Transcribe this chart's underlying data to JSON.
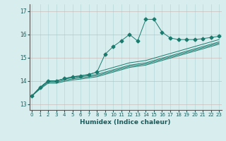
{
  "title": "",
  "xlabel": "Humidex (Indice chaleur)",
  "ylabel": "",
  "x_data": [
    0,
    1,
    2,
    3,
    4,
    5,
    6,
    7,
    8,
    9,
    10,
    11,
    12,
    13,
    14,
    15,
    16,
    17,
    18,
    19,
    20,
    21,
    22,
    23
  ],
  "line1": [
    13.35,
    13.72,
    14.0,
    14.0,
    14.1,
    14.18,
    14.22,
    14.28,
    14.38,
    15.15,
    15.48,
    15.73,
    16.0,
    15.72,
    16.65,
    16.65,
    16.1,
    15.85,
    15.78,
    15.78,
    15.78,
    15.82,
    15.87,
    15.92
  ],
  "line2": [
    13.35,
    13.72,
    14.0,
    14.0,
    14.1,
    14.18,
    14.22,
    14.28,
    14.38,
    14.48,
    14.58,
    14.68,
    14.78,
    14.83,
    14.88,
    14.98,
    15.08,
    15.18,
    15.28,
    15.38,
    15.48,
    15.58,
    15.68,
    15.78
  ],
  "line3": [
    13.35,
    13.72,
    14.0,
    14.0,
    14.08,
    14.14,
    14.18,
    14.23,
    14.28,
    14.38,
    14.48,
    14.58,
    14.68,
    14.73,
    14.78,
    14.88,
    14.98,
    15.08,
    15.18,
    15.28,
    15.38,
    15.48,
    15.58,
    15.68
  ],
  "line4": [
    13.35,
    13.68,
    13.95,
    13.95,
    14.03,
    14.09,
    14.13,
    14.18,
    14.23,
    14.33,
    14.43,
    14.53,
    14.63,
    14.68,
    14.73,
    14.83,
    14.93,
    15.03,
    15.13,
    15.23,
    15.33,
    15.43,
    15.53,
    15.63
  ],
  "line5": [
    13.35,
    13.65,
    13.9,
    13.9,
    13.98,
    14.04,
    14.08,
    14.13,
    14.18,
    14.28,
    14.38,
    14.48,
    14.58,
    14.63,
    14.68,
    14.78,
    14.88,
    14.98,
    15.08,
    15.18,
    15.28,
    15.38,
    15.48,
    15.58
  ],
  "marker_x": [
    0,
    1,
    2,
    3,
    4,
    5,
    6,
    7,
    8,
    9,
    10,
    11,
    12,
    13,
    14,
    15,
    16,
    17,
    18,
    19,
    20,
    21,
    22,
    23
  ],
  "yticks": [
    13,
    14,
    15,
    16,
    17
  ],
  "xticks": [
    0,
    1,
    2,
    3,
    4,
    5,
    6,
    7,
    8,
    9,
    10,
    11,
    12,
    13,
    14,
    15,
    16,
    17,
    18,
    19,
    20,
    21,
    22,
    23
  ],
  "ylim": [
    12.75,
    17.3
  ],
  "xlim": [
    -0.3,
    23.3
  ],
  "line_color": "#1a7a6e",
  "bg_color": "#d8eeee",
  "grid_color": "#b8d8d8",
  "grid_color2": "#c8b8b8",
  "marker": "D",
  "marker_size": 2.5
}
